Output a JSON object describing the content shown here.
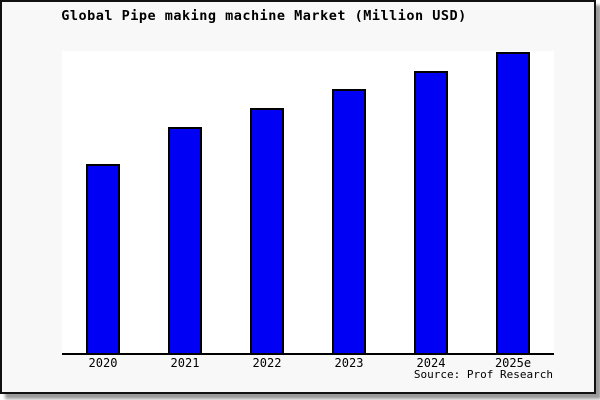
{
  "figure": {
    "background_color": "#f8f8f8",
    "plot_background_color": "#ffffff",
    "border_color": "#111111"
  },
  "chart_data": {
    "type": "bar",
    "title": "Global Pipe making machine Market (Million USD)",
    "categories": [
      "2020",
      "2021",
      "2022",
      "2023",
      "2024",
      "2025e"
    ],
    "values": [
      62.8,
      75.1,
      81.4,
      87.7,
      93.7,
      100
    ],
    "values_note": "No y-axis scale is shown; values are relative bar heights as % of the tallest (2025e) bar.",
    "xlabel": "",
    "ylabel": "",
    "ylim": [
      0,
      100
    ],
    "grid": false,
    "legend": null,
    "bar_color": "#0000f5",
    "bar_edge_color": "#000000",
    "source_note": "Source: Prof Research"
  }
}
